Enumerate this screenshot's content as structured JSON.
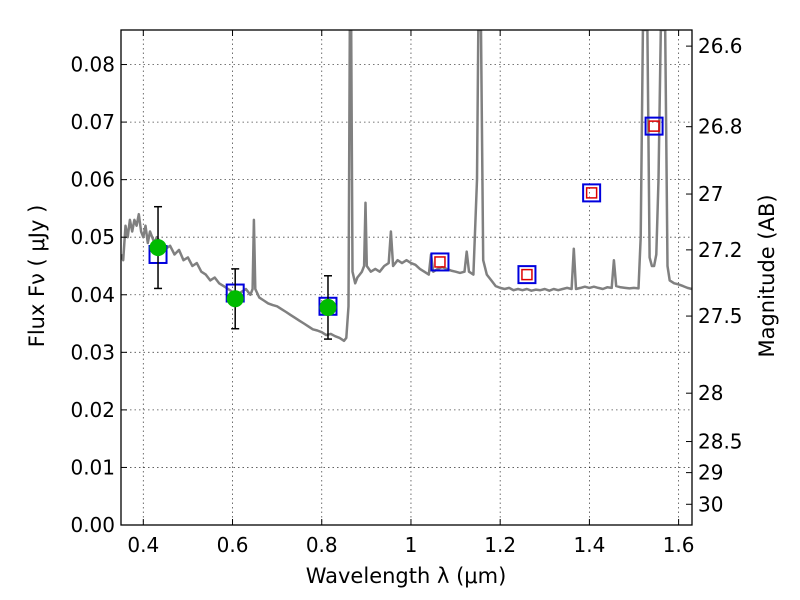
{
  "chart_data": {
    "type": "scatter",
    "xlabel": "Wavelength  λ (μm)",
    "ylabel": "Flux  Fν  ( μJy )",
    "ylabel_right": "Magnitude (AB)",
    "xlim": [
      0.35,
      1.63
    ],
    "ylim": [
      0.0,
      0.086
    ],
    "grid": true,
    "x_ticks": [
      0.4,
      0.6,
      0.8,
      1.0,
      1.2,
      1.4,
      1.6
    ],
    "x_tick_labels": [
      "0.4",
      "0.6",
      "0.8",
      "1",
      "1.2",
      "1.4",
      "1.6"
    ],
    "y_ticks": [
      0.0,
      0.01,
      0.02,
      0.03,
      0.04,
      0.05,
      0.06,
      0.07,
      0.08
    ],
    "y_tick_labels": [
      "0.00",
      "0.01",
      "0.02",
      "0.03",
      "0.04",
      "0.05",
      "0.06",
      "0.07",
      "0.08"
    ],
    "right_ticks": [
      {
        "label": "26.6",
        "flux": 0.0832
      },
      {
        "label": "26.8",
        "flux": 0.0692
      },
      {
        "label": "27",
        "flux": 0.0575
      },
      {
        "label": "27.2",
        "flux": 0.0478
      },
      {
        "label": "27.5",
        "flux": 0.0363
      },
      {
        "label": "28",
        "flux": 0.0229
      },
      {
        "label": "28.5",
        "flux": 0.0145
      },
      {
        "label": "29",
        "flux": 0.0091
      },
      {
        "label": "30",
        "flux": 0.0036
      }
    ],
    "series": [
      {
        "kind": "spectrum",
        "color": "#808080",
        "points": [
          [
            0.35,
            0.047
          ],
          [
            0.355,
            0.046
          ],
          [
            0.36,
            0.052
          ],
          [
            0.365,
            0.05
          ],
          [
            0.37,
            0.053
          ],
          [
            0.375,
            0.051
          ],
          [
            0.38,
            0.053
          ],
          [
            0.385,
            0.052
          ],
          [
            0.39,
            0.054
          ],
          [
            0.395,
            0.051
          ],
          [
            0.4,
            0.05
          ],
          [
            0.405,
            0.052
          ],
          [
            0.41,
            0.049
          ],
          [
            0.415,
            0.051
          ],
          [
            0.42,
            0.05
          ],
          [
            0.425,
            0.049
          ],
          [
            0.43,
            0.05
          ],
          [
            0.44,
            0.049
          ],
          [
            0.45,
            0.048
          ],
          [
            0.46,
            0.0485
          ],
          [
            0.47,
            0.047
          ],
          [
            0.48,
            0.0478
          ],
          [
            0.49,
            0.046
          ],
          [
            0.5,
            0.0465
          ],
          [
            0.51,
            0.045
          ],
          [
            0.52,
            0.0455
          ],
          [
            0.53,
            0.044
          ],
          [
            0.54,
            0.0435
          ],
          [
            0.55,
            0.0425
          ],
          [
            0.56,
            0.043
          ],
          [
            0.57,
            0.042
          ],
          [
            0.58,
            0.0415
          ],
          [
            0.59,
            0.041
          ],
          [
            0.6,
            0.0405
          ],
          [
            0.61,
            0.04
          ],
          [
            0.62,
            0.0405
          ],
          [
            0.63,
            0.041
          ],
          [
            0.64,
            0.04
          ],
          [
            0.645,
            0.041
          ],
          [
            0.648,
            0.053
          ],
          [
            0.651,
            0.041
          ],
          [
            0.66,
            0.0395
          ],
          [
            0.67,
            0.039
          ],
          [
            0.68,
            0.0385
          ],
          [
            0.69,
            0.0382
          ],
          [
            0.7,
            0.038
          ],
          [
            0.71,
            0.0375
          ],
          [
            0.72,
            0.037
          ],
          [
            0.73,
            0.0365
          ],
          [
            0.74,
            0.036
          ],
          [
            0.75,
            0.0355
          ],
          [
            0.76,
            0.035
          ],
          [
            0.77,
            0.0345
          ],
          [
            0.78,
            0.034
          ],
          [
            0.79,
            0.0338
          ],
          [
            0.8,
            0.0335
          ],
          [
            0.81,
            0.033
          ],
          [
            0.82,
            0.0332
          ],
          [
            0.83,
            0.0328
          ],
          [
            0.84,
            0.0325
          ],
          [
            0.85,
            0.032
          ],
          [
            0.855,
            0.0325
          ],
          [
            0.86,
            0.038
          ],
          [
            0.863,
            0.086
          ],
          [
            0.866,
            0.086
          ],
          [
            0.869,
            0.044
          ],
          [
            0.875,
            0.042
          ],
          [
            0.88,
            0.043
          ],
          [
            0.885,
            0.0435
          ],
          [
            0.89,
            0.044
          ],
          [
            0.895,
            0.045
          ],
          [
            0.898,
            0.056
          ],
          [
            0.901,
            0.045
          ],
          [
            0.91,
            0.044
          ],
          [
            0.92,
            0.0445
          ],
          [
            0.93,
            0.044
          ],
          [
            0.94,
            0.045
          ],
          [
            0.95,
            0.0455
          ],
          [
            0.955,
            0.051
          ],
          [
            0.96,
            0.045
          ],
          [
            0.97,
            0.046
          ],
          [
            0.98,
            0.0455
          ],
          [
            0.99,
            0.046
          ],
          [
            1.0,
            0.0455
          ],
          [
            1.01,
            0.0452
          ],
          [
            1.02,
            0.0445
          ],
          [
            1.03,
            0.044
          ],
          [
            1.04,
            0.0435
          ],
          [
            1.045,
            0.047
          ],
          [
            1.05,
            0.044
          ],
          [
            1.06,
            0.0445
          ],
          [
            1.07,
            0.0448
          ],
          [
            1.08,
            0.0445
          ],
          [
            1.09,
            0.0442
          ],
          [
            1.1,
            0.044
          ],
          [
            1.11,
            0.0438
          ],
          [
            1.12,
            0.044
          ],
          [
            1.125,
            0.0475
          ],
          [
            1.13,
            0.044
          ],
          [
            1.14,
            0.0435
          ],
          [
            1.148,
            0.06
          ],
          [
            1.151,
            0.086
          ],
          [
            1.157,
            0.086
          ],
          [
            1.162,
            0.046
          ],
          [
            1.17,
            0.0435
          ],
          [
            1.18,
            0.0425
          ],
          [
            1.19,
            0.0415
          ],
          [
            1.2,
            0.0412
          ],
          [
            1.21,
            0.041
          ],
          [
            1.22,
            0.0412
          ],
          [
            1.23,
            0.0408
          ],
          [
            1.24,
            0.041
          ],
          [
            1.25,
            0.0408
          ],
          [
            1.26,
            0.041
          ],
          [
            1.27,
            0.0407
          ],
          [
            1.28,
            0.0409
          ],
          [
            1.29,
            0.0408
          ],
          [
            1.3,
            0.041
          ],
          [
            1.31,
            0.0407
          ],
          [
            1.32,
            0.041
          ],
          [
            1.33,
            0.0408
          ],
          [
            1.34,
            0.041
          ],
          [
            1.35,
            0.0412
          ],
          [
            1.36,
            0.041
          ],
          [
            1.365,
            0.048
          ],
          [
            1.37,
            0.041
          ],
          [
            1.38,
            0.0412
          ],
          [
            1.39,
            0.0414
          ],
          [
            1.4,
            0.0412
          ],
          [
            1.41,
            0.0414
          ],
          [
            1.42,
            0.0412
          ],
          [
            1.43,
            0.041
          ],
          [
            1.44,
            0.0413
          ],
          [
            1.45,
            0.0412
          ],
          [
            1.455,
            0.046
          ],
          [
            1.46,
            0.0415
          ],
          [
            1.47,
            0.0413
          ],
          [
            1.48,
            0.0412
          ],
          [
            1.49,
            0.0411
          ],
          [
            1.5,
            0.0412
          ],
          [
            1.51,
            0.0411
          ],
          [
            1.515,
            0.05
          ],
          [
            1.52,
            0.086
          ],
          [
            1.53,
            0.086
          ],
          [
            1.535,
            0.0465
          ],
          [
            1.54,
            0.045
          ],
          [
            1.545,
            0.045
          ],
          [
            1.55,
            0.047
          ],
          [
            1.555,
            0.06
          ],
          [
            1.56,
            0.086
          ],
          [
            1.57,
            0.086
          ],
          [
            1.575,
            0.045
          ],
          [
            1.58,
            0.0425
          ],
          [
            1.59,
            0.042
          ],
          [
            1.6,
            0.0418
          ],
          [
            1.61,
            0.0415
          ],
          [
            1.62,
            0.0412
          ],
          [
            1.63,
            0.041
          ]
        ]
      },
      {
        "kind": "observed",
        "color": "#00bb00",
        "points": [
          {
            "x": 0.433,
            "y": 0.0482,
            "yerr": 0.0071
          },
          {
            "x": 0.606,
            "y": 0.0393,
            "yerr": 0.0052
          },
          {
            "x": 0.814,
            "y": 0.0378,
            "yerr": 0.0055
          }
        ]
      },
      {
        "kind": "model-band",
        "color": "#0000dd",
        "points": [
          {
            "x": 0.433,
            "y": 0.047
          },
          {
            "x": 0.606,
            "y": 0.0403
          },
          {
            "x": 0.814,
            "y": 0.038
          },
          {
            "x": 1.065,
            "y": 0.0457
          },
          {
            "x": 1.26,
            "y": 0.0435
          },
          {
            "x": 1.405,
            "y": 0.0577
          },
          {
            "x": 1.545,
            "y": 0.0693
          }
        ]
      },
      {
        "kind": "model-nir",
        "color": "#dd0000",
        "points": [
          {
            "x": 1.065,
            "y": 0.0457
          },
          {
            "x": 1.26,
            "y": 0.0435
          },
          {
            "x": 1.405,
            "y": 0.0577
          },
          {
            "x": 1.545,
            "y": 0.0693
          }
        ]
      }
    ]
  }
}
